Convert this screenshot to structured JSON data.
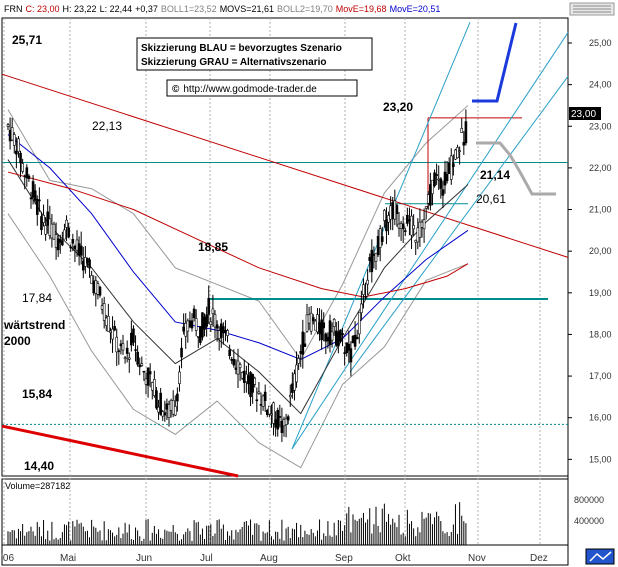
{
  "header": {
    "symbol": "FRN",
    "close": "C: 23,00",
    "high": "H: 23,22",
    "low": "L: 22,44",
    "change": "+0,37",
    "boll1": "BOLL1=23,52",
    "movs": "MOVS=21,61",
    "boll2": "BOLL2=19,70",
    "move1": "MovE=19,68",
    "move2": "MovE=20,51",
    "color_close": "#c00000",
    "color_boll": "#808080",
    "color_move1": "#c00000",
    "color_move2": "#0000cc"
  },
  "legend_box": {
    "line1": "Skizzierung BLAU = bevorzugtes Szenario",
    "line2": "Skizzierung GRAU = Alternativszenario"
  },
  "website": {
    "copyright": "©",
    "url": "http://www.godmode-trader.de"
  },
  "volume": {
    "label": "Volume=287182",
    "ticks": [
      "800000",
      "400000"
    ]
  },
  "chart_data": {
    "type": "candlestick",
    "x_ticks": [
      "'06",
      "Mai",
      "Jun",
      "Jul",
      "Aug",
      "Sep",
      "Okt",
      "Nov",
      "Dez"
    ],
    "y_ticks": [
      "25,00",
      "24,00",
      "23,00",
      "22,00",
      "21,00",
      "20,00",
      "19,00",
      "18,00",
      "17,00",
      "16,00",
      "15,00"
    ],
    "ylim": [
      14.6,
      25.6
    ],
    "last_price_label": "23,00",
    "annotations": [
      {
        "text": "25,71",
        "value": 25.71
      },
      {
        "text": "23,20",
        "value": 23.2
      },
      {
        "text": "22,13",
        "value": 22.13
      },
      {
        "text": "21,14",
        "value": 21.14
      },
      {
        "text": "20,61",
        "value": 20.61
      },
      {
        "text": "18,85",
        "value": 18.85
      },
      {
        "text": "17,84",
        "value": 17.84
      },
      {
        "text": "15,84",
        "value": 15.84
      },
      {
        "text": "14,40",
        "value": 14.4
      }
    ],
    "side_label_1": "wärtstrend",
    "side_label_2": "2000",
    "price_path": [
      [
        0,
        23.0
      ],
      [
        4,
        22.6
      ],
      [
        8,
        21.9
      ],
      [
        12,
        21.4
      ],
      [
        16,
        20.8
      ],
      [
        20,
        20.6
      ],
      [
        24,
        20.3
      ],
      [
        28,
        20.6
      ],
      [
        32,
        20.1
      ],
      [
        36,
        19.8
      ],
      [
        40,
        19.4
      ],
      [
        44,
        18.9
      ],
      [
        48,
        18.3
      ],
      [
        52,
        17.8
      ],
      [
        56,
        17.4
      ],
      [
        60,
        17.9
      ],
      [
        64,
        17.2
      ],
      [
        68,
        16.9
      ],
      [
        72,
        16.4
      ],
      [
        76,
        16.1
      ],
      [
        80,
        16.3
      ],
      [
        84,
        17.9
      ],
      [
        88,
        18.4
      ],
      [
        92,
        18.1
      ],
      [
        96,
        18.6
      ],
      [
        100,
        18.3
      ],
      [
        104,
        17.9
      ],
      [
        108,
        17.5
      ],
      [
        112,
        17.1
      ],
      [
        116,
        16.8
      ],
      [
        120,
        16.6
      ],
      [
        124,
        16.3
      ],
      [
        128,
        16.0
      ],
      [
        132,
        15.7
      ],
      [
        136,
        16.6
      ],
      [
        140,
        17.6
      ],
      [
        144,
        18.4
      ],
      [
        148,
        18.2
      ],
      [
        152,
        18.0
      ],
      [
        156,
        18.1
      ],
      [
        160,
        17.8
      ],
      [
        164,
        17.5
      ],
      [
        168,
        18.3
      ],
      [
        172,
        19.5
      ],
      [
        176,
        20.0
      ],
      [
        180,
        20.7
      ],
      [
        184,
        21.0
      ],
      [
        188,
        20.8
      ],
      [
        192,
        20.6
      ],
      [
        196,
        20.4
      ],
      [
        200,
        20.9
      ],
      [
        204,
        21.8
      ],
      [
        208,
        21.6
      ],
      [
        212,
        22.0
      ],
      [
        216,
        22.6
      ],
      [
        220,
        23.0
      ]
    ]
  }
}
